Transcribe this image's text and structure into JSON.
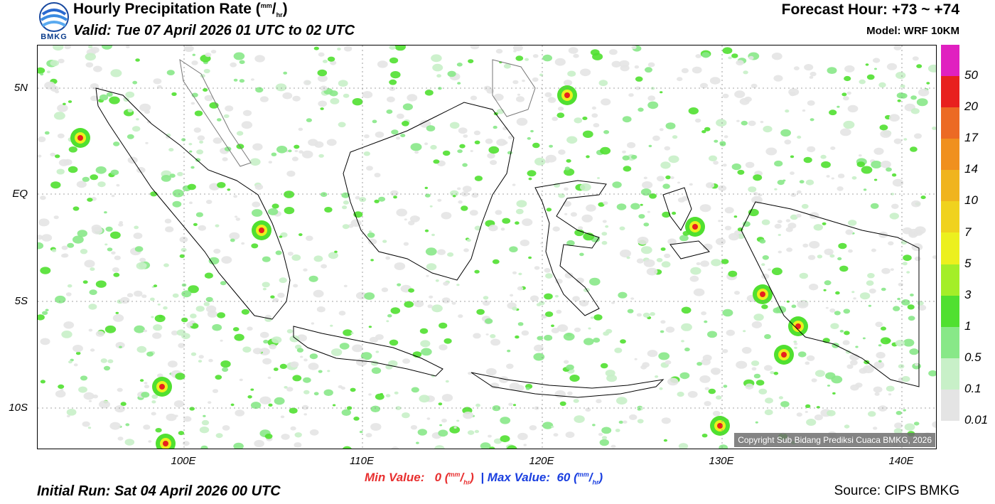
{
  "header": {
    "title": "Hourly Precipitation Rate (",
    "title_unit_sup": "mm",
    "title_unit_sub": "hr",
    "title_close": ")",
    "valid": "Valid: Tue 07 April 2026 01 UTC to 02 UTC",
    "forecast_hour": "Forecast Hour: +73 ~ +74",
    "model": "Model: WRF 10KM",
    "logo_text": "BMKG"
  },
  "map": {
    "lat_labels": [
      "5N",
      "EQ",
      "5S",
      "10S"
    ],
    "lon_labels": [
      "100E",
      "110E",
      "120E",
      "130E",
      "140E"
    ],
    "copyright": "Copyright Sub Bidang Prediksi Cuaca BMKG, 2026",
    "colors": {
      "ocean": "#ffffff",
      "coast": "#000000",
      "grid": "#888888"
    }
  },
  "legend": {
    "labels": [
      "50",
      "20",
      "17",
      "14",
      "10",
      "7",
      "5",
      "3",
      "1",
      "0.5",
      "0.1",
      "0.01"
    ],
    "colors": [
      "#e020c0",
      "#e8201e",
      "#ec6a24",
      "#f0901e",
      "#f0b41e",
      "#f0d21e",
      "#ecf01e",
      "#a4ee28",
      "#50e030",
      "#88e888",
      "#c8f0c8",
      "#e4e4e4"
    ]
  },
  "footer": {
    "min_label": "Min Value:",
    "min_value": "0",
    "separator": "|",
    "max_label": "Max Value:",
    "max_value": "60",
    "unit_sup": "mm",
    "unit_sub": "hr",
    "initial_run": "Initial Run: Sat 04 April 2026 00 UTC",
    "source": "Source: CIPS BMKG"
  }
}
